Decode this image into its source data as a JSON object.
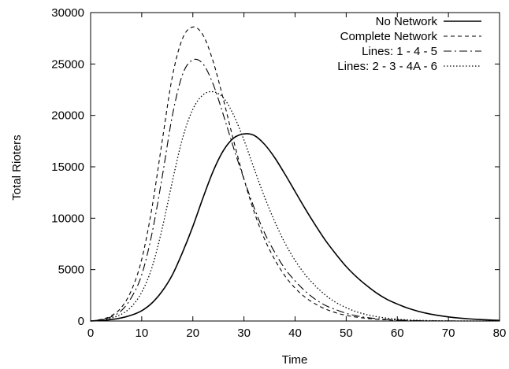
{
  "chart_data": {
    "type": "line",
    "title": "",
    "xlabel": "Time",
    "ylabel": "Total Rioters",
    "xlim": [
      0,
      80
    ],
    "ylim": [
      0,
      30000
    ],
    "xticks": [
      0,
      10,
      20,
      30,
      40,
      50,
      60,
      70,
      80
    ],
    "yticks": [
      0,
      5000,
      10000,
      15000,
      20000,
      25000,
      30000
    ],
    "grid": false,
    "legend_position": "top-right",
    "x": [
      0,
      2,
      4,
      6,
      8,
      10,
      12,
      14,
      16,
      18,
      20,
      22,
      24,
      26,
      28,
      30,
      32,
      34,
      36,
      38,
      40,
      42,
      44,
      46,
      48,
      50,
      52,
      54,
      56,
      58,
      60,
      62,
      64,
      66,
      68,
      70,
      72,
      74,
      76,
      78,
      80
    ],
    "series": [
      {
        "name": "No Network",
        "style": "solid",
        "values": [
          0,
          50,
          140,
          300,
          570,
          1000,
          1750,
          2900,
          4500,
          6700,
          9200,
          12000,
          14600,
          16600,
          17800,
          18200,
          18050,
          17200,
          15900,
          14300,
          12600,
          10900,
          9300,
          7800,
          6500,
          5300,
          4300,
          3450,
          2700,
          2100,
          1650,
          1260,
          960,
          720,
          540,
          400,
          290,
          210,
          150,
          100,
          60
        ]
      },
      {
        "name": "Complete Network",
        "style": "dashed",
        "values": [
          0,
          150,
          500,
          1300,
          3000,
          6000,
          11000,
          17500,
          23800,
          27500,
          28600,
          27800,
          25200,
          21500,
          17500,
          13800,
          10600,
          8000,
          6000,
          4400,
          3200,
          2300,
          1650,
          1150,
          800,
          550,
          380,
          260,
          170,
          110,
          70,
          40,
          20,
          10,
          5,
          2,
          0,
          0,
          0,
          0,
          0
        ]
      },
      {
        "name": "Lines: 1 - 4 - 5",
        "style": "dash-dot",
        "values": [
          0,
          120,
          400,
          1000,
          2300,
          4500,
          8500,
          14000,
          20000,
          24000,
          25400,
          25000,
          23000,
          20000,
          16800,
          13800,
          11000,
          8600,
          6700,
          5100,
          3900,
          2900,
          2100,
          1500,
          1100,
          750,
          500,
          340,
          230,
          150,
          100,
          60,
          35,
          20,
          10,
          5,
          0,
          0,
          0,
          0,
          0
        ]
      },
      {
        "name": "Lines: 2 - 3 - 4A - 6",
        "style": "dotted",
        "values": [
          0,
          90,
          280,
          650,
          1400,
          2800,
          5200,
          9000,
          13600,
          17800,
          20600,
          22000,
          22300,
          21700,
          20000,
          17600,
          14800,
          12100,
          9700,
          7600,
          5900,
          4500,
          3400,
          2500,
          1800,
          1300,
          900,
          620,
          420,
          280,
          180,
          110,
          70,
          40,
          25,
          15,
          8,
          4,
          2,
          1,
          0
        ]
      }
    ]
  }
}
